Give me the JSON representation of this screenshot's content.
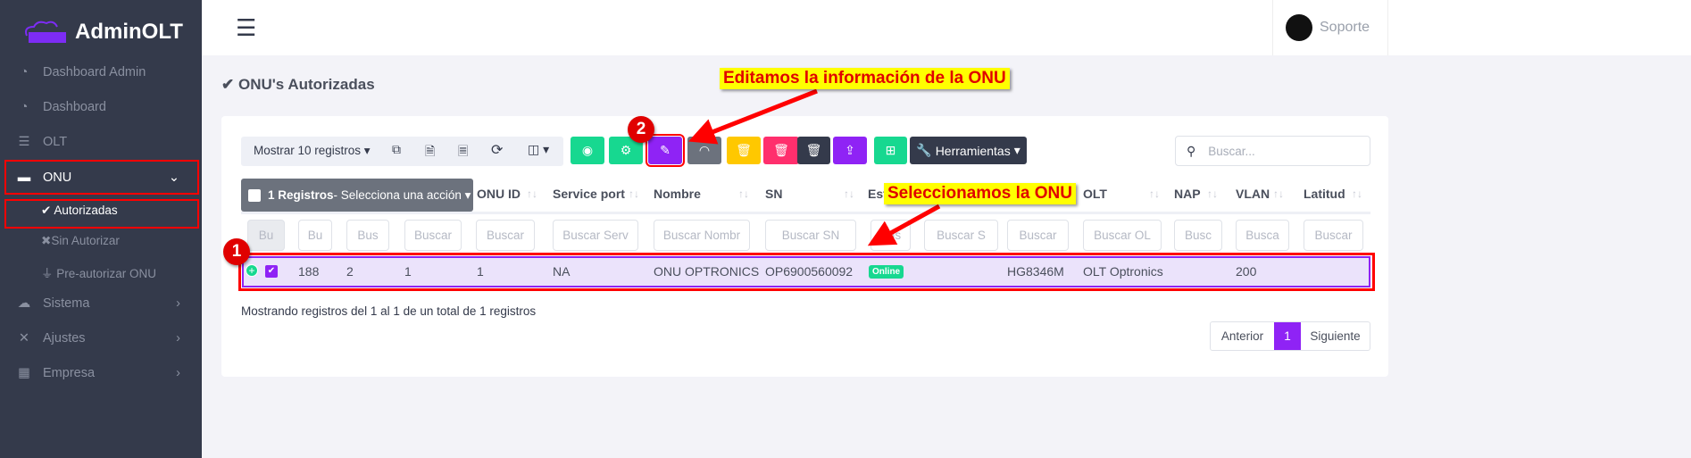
{
  "app": {
    "name": "AdminOLT"
  },
  "sidebar": {
    "items": [
      {
        "label": "Dashboard Admin",
        "icon": "tachometer-icon"
      },
      {
        "label": "Dashboard",
        "icon": "tachometer-icon"
      },
      {
        "label": "OLT",
        "icon": "server-icon"
      },
      {
        "label": "ONU",
        "icon": "hdd-icon"
      },
      {
        "label": "Autorizadas",
        "icon": "check-icon"
      },
      {
        "label": "Sin Autorizar",
        "icon": "times-icon"
      },
      {
        "label": "Pre-autorizar ONU",
        "icon": "plug-icon"
      },
      {
        "label": "Sistema",
        "icon": "cloud-icon"
      },
      {
        "label": "Ajustes",
        "icon": "tools-icon"
      },
      {
        "label": "Empresa",
        "icon": "building-icon"
      }
    ]
  },
  "topbar": {
    "user": "Soporte"
  },
  "page": {
    "title": "ONU's Autorizadas"
  },
  "toolbar": {
    "show_records": "Mostrar 10 registros",
    "tools": "Herramientas",
    "search_placeholder": "Buscar..."
  },
  "colors": {
    "green": "#17d890",
    "purple": "#8f23f5",
    "gray": "#6c727d",
    "yellow": "#ffc800",
    "pink": "#ff2f6d",
    "dark": "#343a4b",
    "annotation": "#ff0000"
  },
  "table": {
    "bulk": {
      "count": "1 Registros",
      "action": " - Selecciona una acción"
    },
    "headers": [
      "ONU ID",
      "Service port",
      "Nombre",
      "SN",
      "Est",
      "OLT",
      "NAP",
      "VLAN",
      "Latitud"
    ],
    "filters": [
      "Bu",
      "Bu",
      "Bus",
      "Buscar",
      "Buscar",
      "Buscar Serv",
      "Buscar Nombr",
      "Buscar SN",
      "Bus",
      "Buscar S",
      "Buscar",
      "Buscar OL",
      "Busc",
      "Busca",
      "Buscar"
    ],
    "row": [
      "188",
      "2",
      "1",
      "1",
      "NA",
      "ONU OPTRONICS",
      "OP6900560092",
      "HG8346M",
      "OLT Optronics",
      "200"
    ],
    "status": "Online"
  },
  "footer": {
    "info": "Mostrando registros del 1 al 1 de un total de 1 registros",
    "prev": "Anterior",
    "page": "1",
    "next": "Siguiente"
  },
  "annotations": {
    "a1": "Editamos la información de la ONU",
    "a2": "Seleccionamos la ONU",
    "n1": "1",
    "n2": "2"
  }
}
